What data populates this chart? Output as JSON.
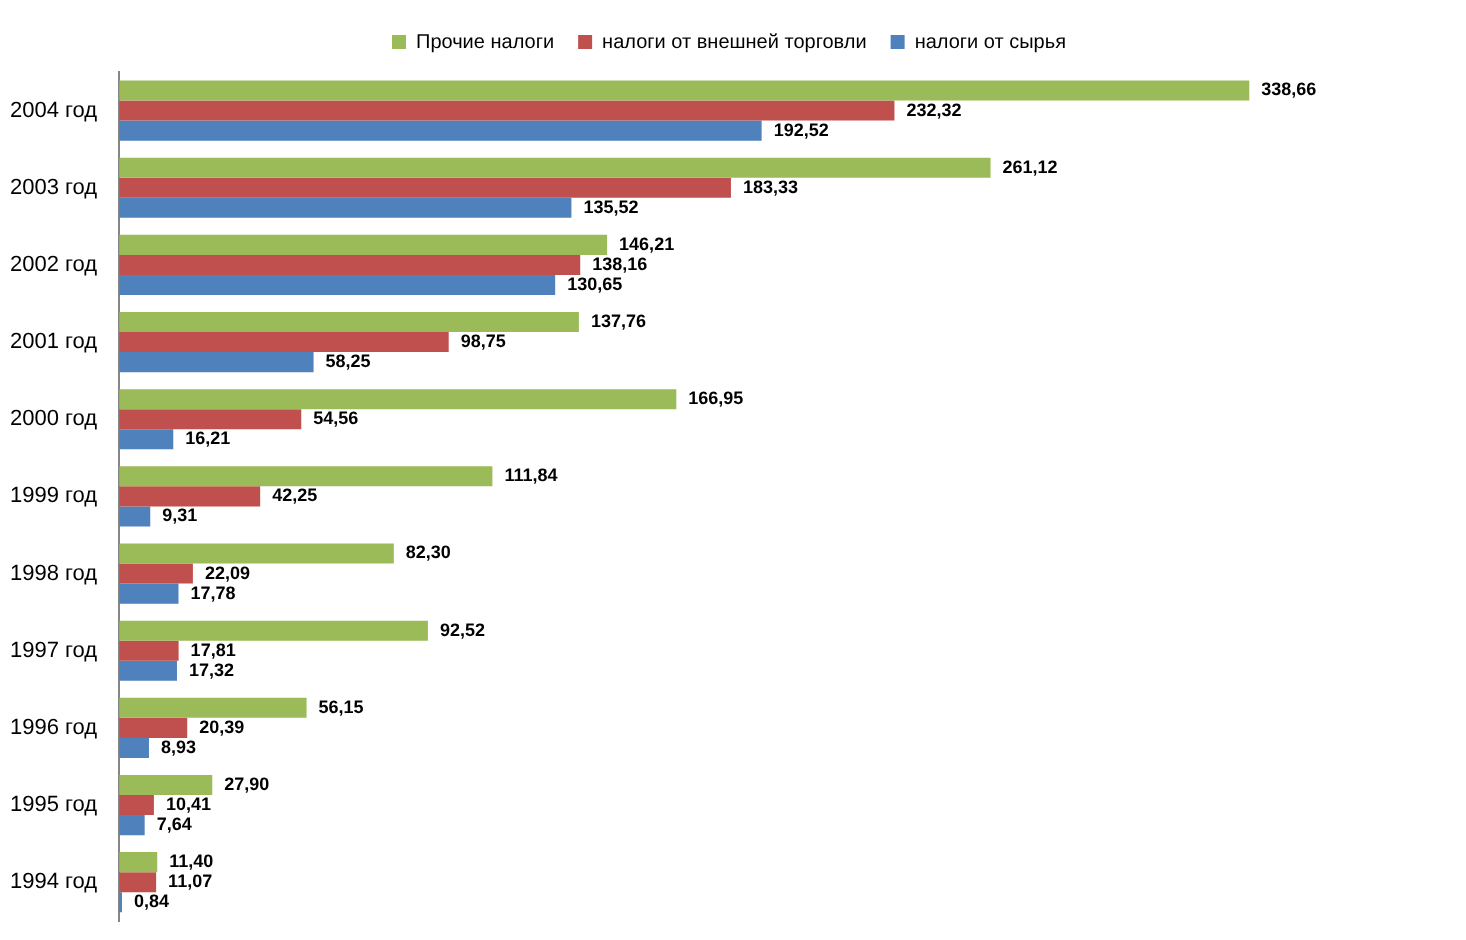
{
  "chart_data": {
    "type": "bar",
    "orientation": "horizontal",
    "legend": "top",
    "categories": [
      "2004 год",
      "2003 год",
      "2002 год",
      "2001 год",
      "2000 год",
      "1999 год",
      "1998 год",
      "1997 год",
      "1996 год",
      "1995 год",
      "1994 год"
    ],
    "series": [
      {
        "name": "Прочие налоги",
        "color": "#9bbb59",
        "values": [
          338.66,
          261.12,
          146.21,
          137.76,
          166.95,
          111.84,
          82.3,
          92.52,
          56.15,
          27.9,
          11.4
        ],
        "value_labels": [
          "338,66",
          "261,12",
          "146,21",
          "137,76",
          "166,95",
          "111,84",
          "82,30",
          "92,52",
          "56,15",
          "27,90",
          "11,40"
        ]
      },
      {
        "name": "налоги от внешней торговли",
        "color": "#c0504d",
        "values": [
          232.32,
          183.33,
          138.16,
          98.75,
          54.56,
          42.25,
          22.09,
          17.81,
          20.39,
          10.41,
          11.07
        ],
        "value_labels": [
          "232,32",
          "183,33",
          "138,16",
          "98,75",
          "54,56",
          "42,25",
          "22,09",
          "17,81",
          "20,39",
          "10,41",
          "11,07"
        ]
      },
      {
        "name": "налоги от сырья",
        "color": "#4f81bd",
        "values": [
          192.52,
          135.52,
          130.65,
          58.25,
          16.21,
          9.31,
          17.78,
          17.32,
          8.93,
          7.64,
          0.84
        ],
        "value_labels": [
          "192,52",
          "135,52",
          "130,65",
          "58,25",
          "16,21",
          "9,31",
          "17,78",
          "17,32",
          "8,93",
          "7,64",
          "0,84"
        ]
      }
    ]
  }
}
